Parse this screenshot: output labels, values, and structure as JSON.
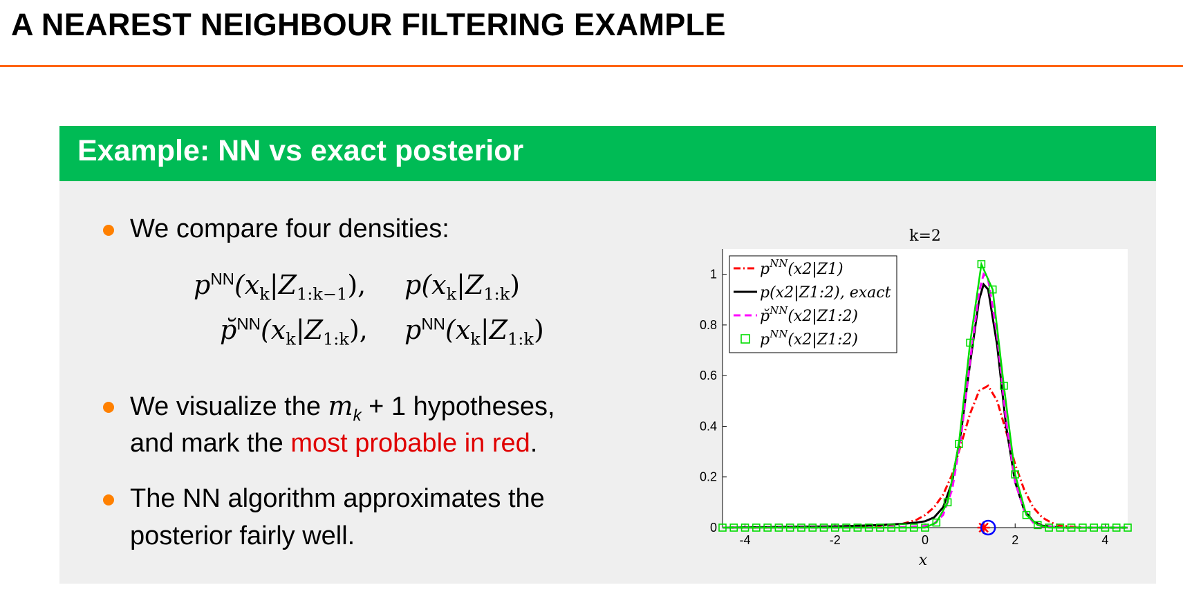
{
  "slide": {
    "title": "A NEAREST NEIGHBOUR FILTERING EXAMPLE",
    "block_title": "Example: NN vs exact posterior"
  },
  "bullets": {
    "b1": "We compare four densities:",
    "b2_pre": "We visualize the ",
    "b2_math": "m",
    "b2_sub": "k",
    "b2_post": " + 1 hypotheses,",
    "b2_line2_pre": "and mark the ",
    "b2_line2_red": "most probable in red",
    "b2_line2_post": ".",
    "b3_line1": "The NN algorithm approximates the",
    "b3_line2": "posterior fairly well."
  },
  "formulas": {
    "f1": "p",
    "f1_sup": "NN",
    "f1_args": "(x",
    "f1_sub_k": "k",
    "f1_bar": "|Z",
    "f1_sub": "1:k−1",
    "f1_close": "),",
    "f2": "p(x",
    "f2_sub_k": "k",
    "f2_bar": "|Z",
    "f2_sub": "1:k",
    "f2_close": ")",
    "f3": "p̆",
    "f3_sup": "NN",
    "f3_args": "(x",
    "f3_sub_k": "k",
    "f3_bar": "|Z",
    "f3_sub": "1:k",
    "f3_close": "),",
    "f4": "p",
    "f4_sup": "NN",
    "f4_args": "(x",
    "f4_sub_k": "k",
    "f4_bar": "|Z",
    "f4_sub": "1:k",
    "f4_close": ")"
  },
  "chart_data": {
    "type": "line",
    "title": "k=2",
    "xlabel": "x",
    "ylabel": "",
    "xlim": [
      -4.5,
      4.5
    ],
    "ylim": [
      0,
      1.1
    ],
    "xticks": [
      -4,
      -2,
      0,
      2,
      4
    ],
    "yticks": [
      0,
      0.2,
      0.4,
      0.6,
      0.8,
      1
    ],
    "xtick_labels": [
      "-4",
      "-2",
      "0",
      "2",
      "4"
    ],
    "ytick_labels": [
      "0",
      "0.2",
      "0.4",
      "0.6",
      "0.8",
      "1"
    ],
    "legend_position": "top-left",
    "series": [
      {
        "name": "p^NN(x2|Z1)",
        "style": "dash-dot",
        "color": "#ff0000",
        "x": [
          -4.5,
          -3.5,
          -2.5,
          -1.5,
          -1.0,
          -0.5,
          -0.2,
          0.0,
          0.2,
          0.4,
          0.6,
          0.8,
          1.0,
          1.2,
          1.4,
          1.6,
          1.8,
          2.0,
          2.2,
          2.4,
          2.6,
          2.8,
          3.0,
          3.5,
          4.5
        ],
        "y": [
          0,
          0,
          0.002,
          0.005,
          0.008,
          0.015,
          0.03,
          0.05,
          0.08,
          0.13,
          0.21,
          0.33,
          0.45,
          0.54,
          0.56,
          0.5,
          0.38,
          0.25,
          0.15,
          0.08,
          0.04,
          0.02,
          0.008,
          0,
          0
        ]
      },
      {
        "name": "p(x2|Z1:2), exact",
        "style": "solid",
        "color": "#000000",
        "x": [
          -4.5,
          -2.0,
          -1.0,
          -0.5,
          -0.2,
          0.0,
          0.2,
          0.4,
          0.6,
          0.8,
          1.0,
          1.2,
          1.3,
          1.4,
          1.6,
          1.8,
          2.0,
          2.2,
          2.4,
          2.6,
          3.0,
          4.5
        ],
        "y": [
          0,
          0.005,
          0.01,
          0.015,
          0.02,
          0.025,
          0.04,
          0.08,
          0.18,
          0.38,
          0.65,
          0.9,
          0.96,
          0.94,
          0.72,
          0.4,
          0.18,
          0.07,
          0.025,
          0.008,
          0,
          0
        ]
      },
      {
        "name": "p̆^NN(x2|Z1:2)",
        "style": "dashed",
        "color": "#ff00ff",
        "x": [
          -4.5,
          -1.0,
          -0.5,
          0.0,
          0.2,
          0.4,
          0.6,
          0.8,
          1.0,
          1.2,
          1.3,
          1.4,
          1.6,
          1.8,
          2.0,
          2.2,
          2.4,
          2.6,
          3.0,
          4.5
        ],
        "y": [
          0,
          0,
          0.002,
          0.006,
          0.015,
          0.05,
          0.15,
          0.36,
          0.66,
          0.93,
          1.0,
          0.98,
          0.76,
          0.42,
          0.18,
          0.07,
          0.02,
          0.005,
          0,
          0
        ]
      },
      {
        "name": "p^NN(x2|Z1:2)",
        "style": "squares",
        "color": "#00dd00",
        "x": [
          -4.5,
          -4.25,
          -4.0,
          -3.75,
          -3.5,
          -3.25,
          -3.0,
          -2.75,
          -2.5,
          -2.25,
          -2.0,
          -1.75,
          -1.5,
          -1.25,
          -1.0,
          -0.75,
          -0.5,
          -0.25,
          0.0,
          0.25,
          0.5,
          0.75,
          1.0,
          1.25,
          1.5,
          1.75,
          2.0,
          2.25,
          2.5,
          2.75,
          3.0,
          3.25,
          3.5,
          3.75,
          4.0,
          4.25,
          4.5
        ],
        "y": [
          0,
          0,
          0,
          0,
          0,
          0,
          0,
          0,
          0,
          0,
          0,
          0,
          0,
          0,
          0,
          0,
          0,
          0,
          0,
          0.02,
          0.1,
          0.33,
          0.73,
          1.04,
          0.94,
          0.56,
          0.21,
          0.05,
          0.01,
          0,
          0,
          0,
          0,
          0,
          0,
          0,
          0
        ]
      }
    ],
    "markers": [
      {
        "name": "measurement",
        "shape": "asterisk",
        "color": "#ff0000",
        "x": 1.3,
        "y": 0
      },
      {
        "name": "most-probable-hypothesis",
        "shape": "circle",
        "color": "#0000ff",
        "x": 1.4,
        "y": 0
      }
    ]
  }
}
